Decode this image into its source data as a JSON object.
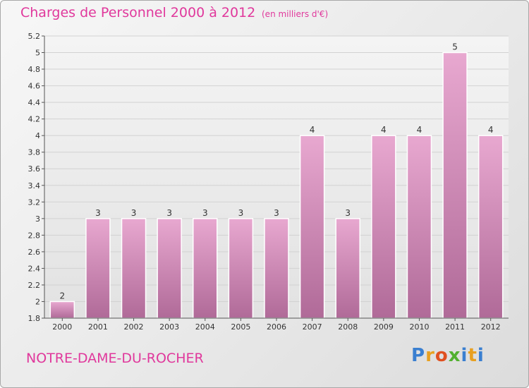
{
  "header": {
    "title": "Charges de Personnel 2000 à 2012",
    "subtitle": "(en milliers d'€)"
  },
  "footer": {
    "commune": "NOTRE-DAME-DU-ROCHER",
    "logo_text": "Proxiti"
  },
  "colors": {
    "accent": "#e0389c",
    "bar_light": "#e8a8d0",
    "bar_dark": "#b86f9e"
  },
  "chart_data": {
    "type": "bar",
    "title": "Charges de Personnel 2000 à 2012",
    "subtitle": "(en milliers d'€)",
    "categories": [
      "2000",
      "2001",
      "2002",
      "2003",
      "2004",
      "2005",
      "2006",
      "2007",
      "2008",
      "2009",
      "2010",
      "2011",
      "2012"
    ],
    "values": [
      2,
      3,
      3,
      3,
      3,
      3,
      3,
      4,
      3,
      4,
      4,
      5,
      4
    ],
    "value_labels": [
      "2",
      "3",
      "3",
      "3",
      "3",
      "3",
      "3",
      "4",
      "3",
      "4",
      "4",
      "5",
      "4"
    ],
    "ylim": [
      1.8,
      5.2
    ],
    "yticks": [
      1.8,
      2,
      2.2,
      2.4,
      2.6,
      2.8,
      3,
      3.2,
      3.4,
      3.6,
      3.8,
      4,
      4.2,
      4.4,
      4.6,
      4.8,
      5,
      5.2
    ],
    "ytick_labels": [
      "1.8",
      "2",
      "2.2",
      "2.4",
      "2.6",
      "2.8",
      "3",
      "3.2",
      "3.4",
      "3.6",
      "3.8",
      "4",
      "4.2",
      "4.4",
      "4.6",
      "4.8",
      "5",
      "5.2"
    ],
    "grid": true,
    "legend": "none"
  }
}
